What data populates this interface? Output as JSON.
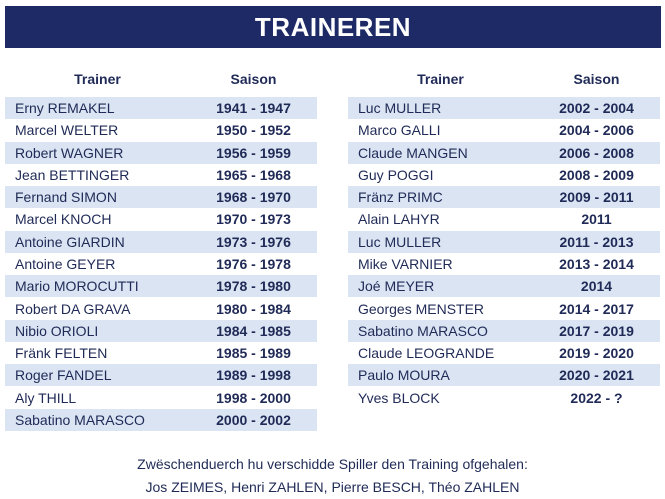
{
  "title": "TRAINEREN",
  "headers": {
    "trainer": "Trainer",
    "season": "Saison"
  },
  "left": [
    {
      "name": "Erny REMAKEL",
      "season": "1941 - 1947"
    },
    {
      "name": "Marcel WELTER",
      "season": "1950 - 1952"
    },
    {
      "name": "Robert WAGNER",
      "season": "1956 - 1959"
    },
    {
      "name": "Jean BETTINGER",
      "season": "1965 - 1968"
    },
    {
      "name": "Fernand SIMON",
      "season": "1968 - 1970"
    },
    {
      "name": "Marcel KNOCH",
      "season": "1970 - 1973"
    },
    {
      "name": "Antoine GIARDIN",
      "season": "1973 - 1976"
    },
    {
      "name": "Antoine GEYER",
      "season": "1976 - 1978"
    },
    {
      "name": "Mario MOROCUTTI",
      "season": "1978 - 1980"
    },
    {
      "name": "Robert DA GRAVA",
      "season": "1980 - 1984"
    },
    {
      "name": "Nibio ORIOLI",
      "season": "1984 - 1985"
    },
    {
      "name": "Fränk FELTEN",
      "season": "1985 - 1989"
    },
    {
      "name": "Roger FANDEL",
      "season": "1989 - 1998"
    },
    {
      "name": "Aly THILL",
      "season": "1998 - 2000"
    },
    {
      "name": "Sabatino MARASCO",
      "season": "2000 - 2002"
    }
  ],
  "right": [
    {
      "name": "Luc MULLER",
      "season": "2002 - 2004"
    },
    {
      "name": "Marco GALLI",
      "season": "2004 - 2006"
    },
    {
      "name": "Claude MANGEN",
      "season": "2006 - 2008"
    },
    {
      "name": "Guy POGGI",
      "season": "2008 - 2009"
    },
    {
      "name": "Fränz PRIMC",
      "season": "2009 - 2011"
    },
    {
      "name": "Alain LAHYR",
      "season": "2011"
    },
    {
      "name": "Luc MULLER",
      "season": "2011 - 2013"
    },
    {
      "name": "Mike VARNIER",
      "season": "2013 - 2014"
    },
    {
      "name": "Joé MEYER",
      "season": "2014"
    },
    {
      "name": "Georges MENSTER",
      "season": "2014 - 2017"
    },
    {
      "name": "Sabatino MARASCO",
      "season": "2017 - 2019"
    },
    {
      "name": "Claude LEOGRANDE",
      "season": "2019 - 2020"
    },
    {
      "name": "Paulo MOURA",
      "season": "2020 - 2021"
    },
    {
      "name": "Yves BLOCK",
      "season": "2022 - ?"
    }
  ],
  "footer": {
    "line1": "Zwëschenduerch hu verschidde Spiller den Training ofgehalen:",
    "line2": "Jos ZEIMES, Henri ZAHLEN, Pierre BESCH, Théo ZAHLEN"
  },
  "colors": {
    "banner": "#1e2a66",
    "row_shade": "#dae4f3",
    "text": "#1f2a56"
  }
}
